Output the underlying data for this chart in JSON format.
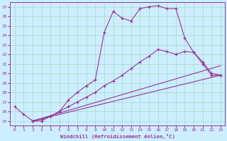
{
  "xlabel": "Windchill (Refroidissement éolien,°C)",
  "bg_color": "#cceeff",
  "line_color": "#993399",
  "grid_color": "#aaddcc",
  "xlim": [
    -0.5,
    23.5
  ],
  "ylim": [
    14.5,
    27.5
  ],
  "yticks": [
    15,
    16,
    17,
    18,
    19,
    20,
    21,
    22,
    23,
    24,
    25,
    26,
    27
  ],
  "xticks": [
    0,
    1,
    2,
    3,
    4,
    5,
    6,
    7,
    8,
    9,
    10,
    11,
    12,
    13,
    14,
    15,
    16,
    17,
    18,
    19,
    20,
    21,
    22,
    23
  ],
  "series": [
    {
      "x": [
        0,
        1,
        2,
        3,
        4,
        5,
        6,
        7,
        8,
        9,
        10,
        11,
        12,
        13,
        14,
        15,
        16,
        17,
        18,
        19,
        20,
        21,
        22,
        23
      ],
      "y": [
        16.5,
        15.7,
        15.0,
        15.0,
        15.5,
        16.0,
        17.2,
        18.0,
        18.7,
        19.3,
        24.3,
        26.5,
        25.8,
        25.5,
        26.8,
        27.0,
        27.1,
        26.8,
        26.8,
        23.7,
        22.2,
        21.0,
        19.8,
        19.8
      ],
      "marker": true
    },
    {
      "x": [
        2,
        3,
        4,
        5,
        6,
        7,
        8,
        9,
        10,
        11,
        12,
        13,
        14,
        15,
        16,
        17,
        18,
        19,
        20,
        21,
        22,
        23
      ],
      "y": [
        15.0,
        15.2,
        15.5,
        16.0,
        16.5,
        17.0,
        17.5,
        18.0,
        18.7,
        19.2,
        19.8,
        20.5,
        21.2,
        21.8,
        22.5,
        22.3,
        22.0,
        22.3,
        22.2,
        21.2,
        20.0,
        19.8
      ],
      "marker": true
    },
    {
      "x": [
        2,
        23
      ],
      "y": [
        15.0,
        20.8
      ],
      "marker": false
    },
    {
      "x": [
        2,
        23
      ],
      "y": [
        15.0,
        19.8
      ],
      "marker": false
    }
  ]
}
